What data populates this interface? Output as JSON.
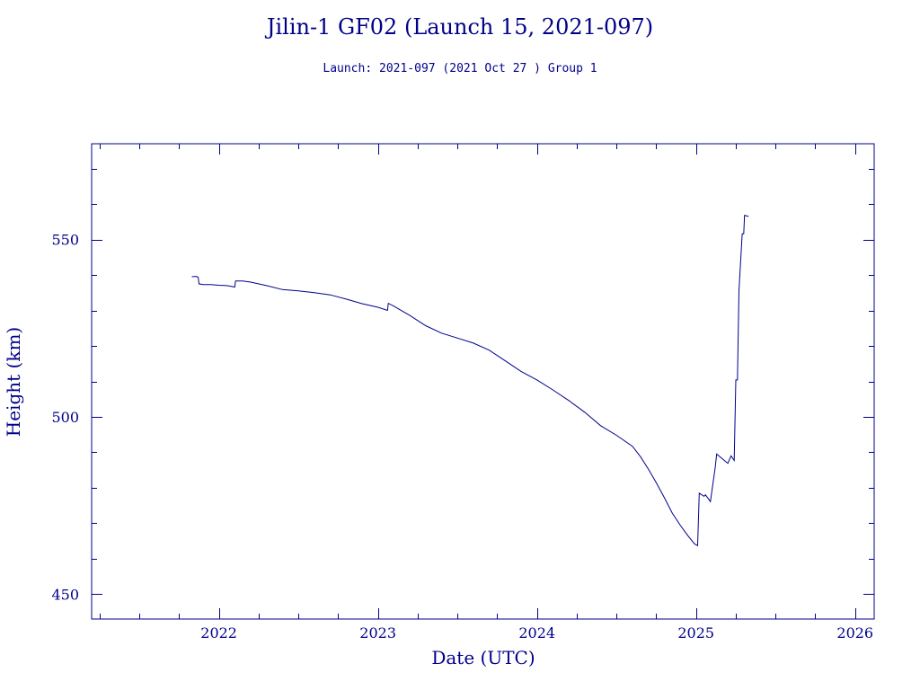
{
  "chart_data": {
    "type": "line",
    "title": "Jilin-1 GF02 (Launch 15, 2021-097)",
    "subtitle": "Launch: 2021-097  (2021 Oct 27 )  Group 1",
    "xlabel": "Date (UTC)",
    "ylabel": "Height (km)",
    "xlim": [
      2021.2,
      2026.12
    ],
    "ylim": [
      443,
      577
    ],
    "x_ticks": [
      2022,
      2023,
      2024,
      2025,
      2026
    ],
    "x_tick_labels": [
      "2022",
      "2023",
      "2024",
      "2025",
      "2026"
    ],
    "y_ticks": [
      450,
      500,
      550
    ],
    "y_tick_labels": [
      "450",
      "500",
      "550"
    ],
    "x_minor_step": 0.25,
    "y_minor_step": 10,
    "grid": false,
    "legend": "none",
    "series": [
      {
        "color": "#00008b",
        "points": [
          [
            2021.83,
            539.5
          ],
          [
            2021.86,
            539.6
          ],
          [
            2021.87,
            539.3
          ],
          [
            2021.875,
            537.5
          ],
          [
            2021.9,
            537.3
          ],
          [
            2021.95,
            537.3
          ],
          [
            2022.0,
            537.1
          ],
          [
            2022.05,
            537.0
          ],
          [
            2022.1,
            536.6
          ],
          [
            2022.105,
            538.3
          ],
          [
            2022.15,
            538.3
          ],
          [
            2022.2,
            538.0
          ],
          [
            2022.3,
            537.0
          ],
          [
            2022.4,
            535.9
          ],
          [
            2022.5,
            535.5
          ],
          [
            2022.6,
            535.0
          ],
          [
            2022.7,
            534.4
          ],
          [
            2022.8,
            533.2
          ],
          [
            2022.9,
            531.9
          ],
          [
            2023.0,
            530.9
          ],
          [
            2023.06,
            530.0
          ],
          [
            2023.065,
            532.0
          ],
          [
            2023.1,
            531.2
          ],
          [
            2023.2,
            528.6
          ],
          [
            2023.3,
            525.7
          ],
          [
            2023.4,
            523.6
          ],
          [
            2023.5,
            522.2
          ],
          [
            2023.6,
            520.8
          ],
          [
            2023.7,
            518.8
          ],
          [
            2023.8,
            515.8
          ],
          [
            2023.9,
            512.8
          ],
          [
            2024.0,
            510.4
          ],
          [
            2024.1,
            507.6
          ],
          [
            2024.2,
            504.6
          ],
          [
            2024.3,
            501.3
          ],
          [
            2024.4,
            497.5
          ],
          [
            2024.5,
            494.8
          ],
          [
            2024.6,
            491.7
          ],
          [
            2024.65,
            488.8
          ],
          [
            2024.7,
            485.3
          ],
          [
            2024.75,
            481.4
          ],
          [
            2024.8,
            477.3
          ],
          [
            2024.85,
            472.9
          ],
          [
            2024.9,
            469.5
          ],
          [
            2024.95,
            466.4
          ],
          [
            2024.99,
            464.2
          ],
          [
            2025.01,
            463.7
          ],
          [
            2025.02,
            478.5
          ],
          [
            2025.05,
            477.6
          ],
          [
            2025.06,
            478.0
          ],
          [
            2025.09,
            476.1
          ],
          [
            2025.12,
            485.6
          ],
          [
            2025.13,
            489.5
          ],
          [
            2025.2,
            486.9
          ],
          [
            2025.22,
            489.0
          ],
          [
            2025.24,
            487.7
          ],
          [
            2025.25,
            510.4
          ],
          [
            2025.26,
            510.4
          ],
          [
            2025.27,
            535.6
          ],
          [
            2025.29,
            551.6
          ],
          [
            2025.3,
            551.6
          ],
          [
            2025.305,
            556.8
          ],
          [
            2025.33,
            556.5
          ]
        ]
      }
    ]
  }
}
